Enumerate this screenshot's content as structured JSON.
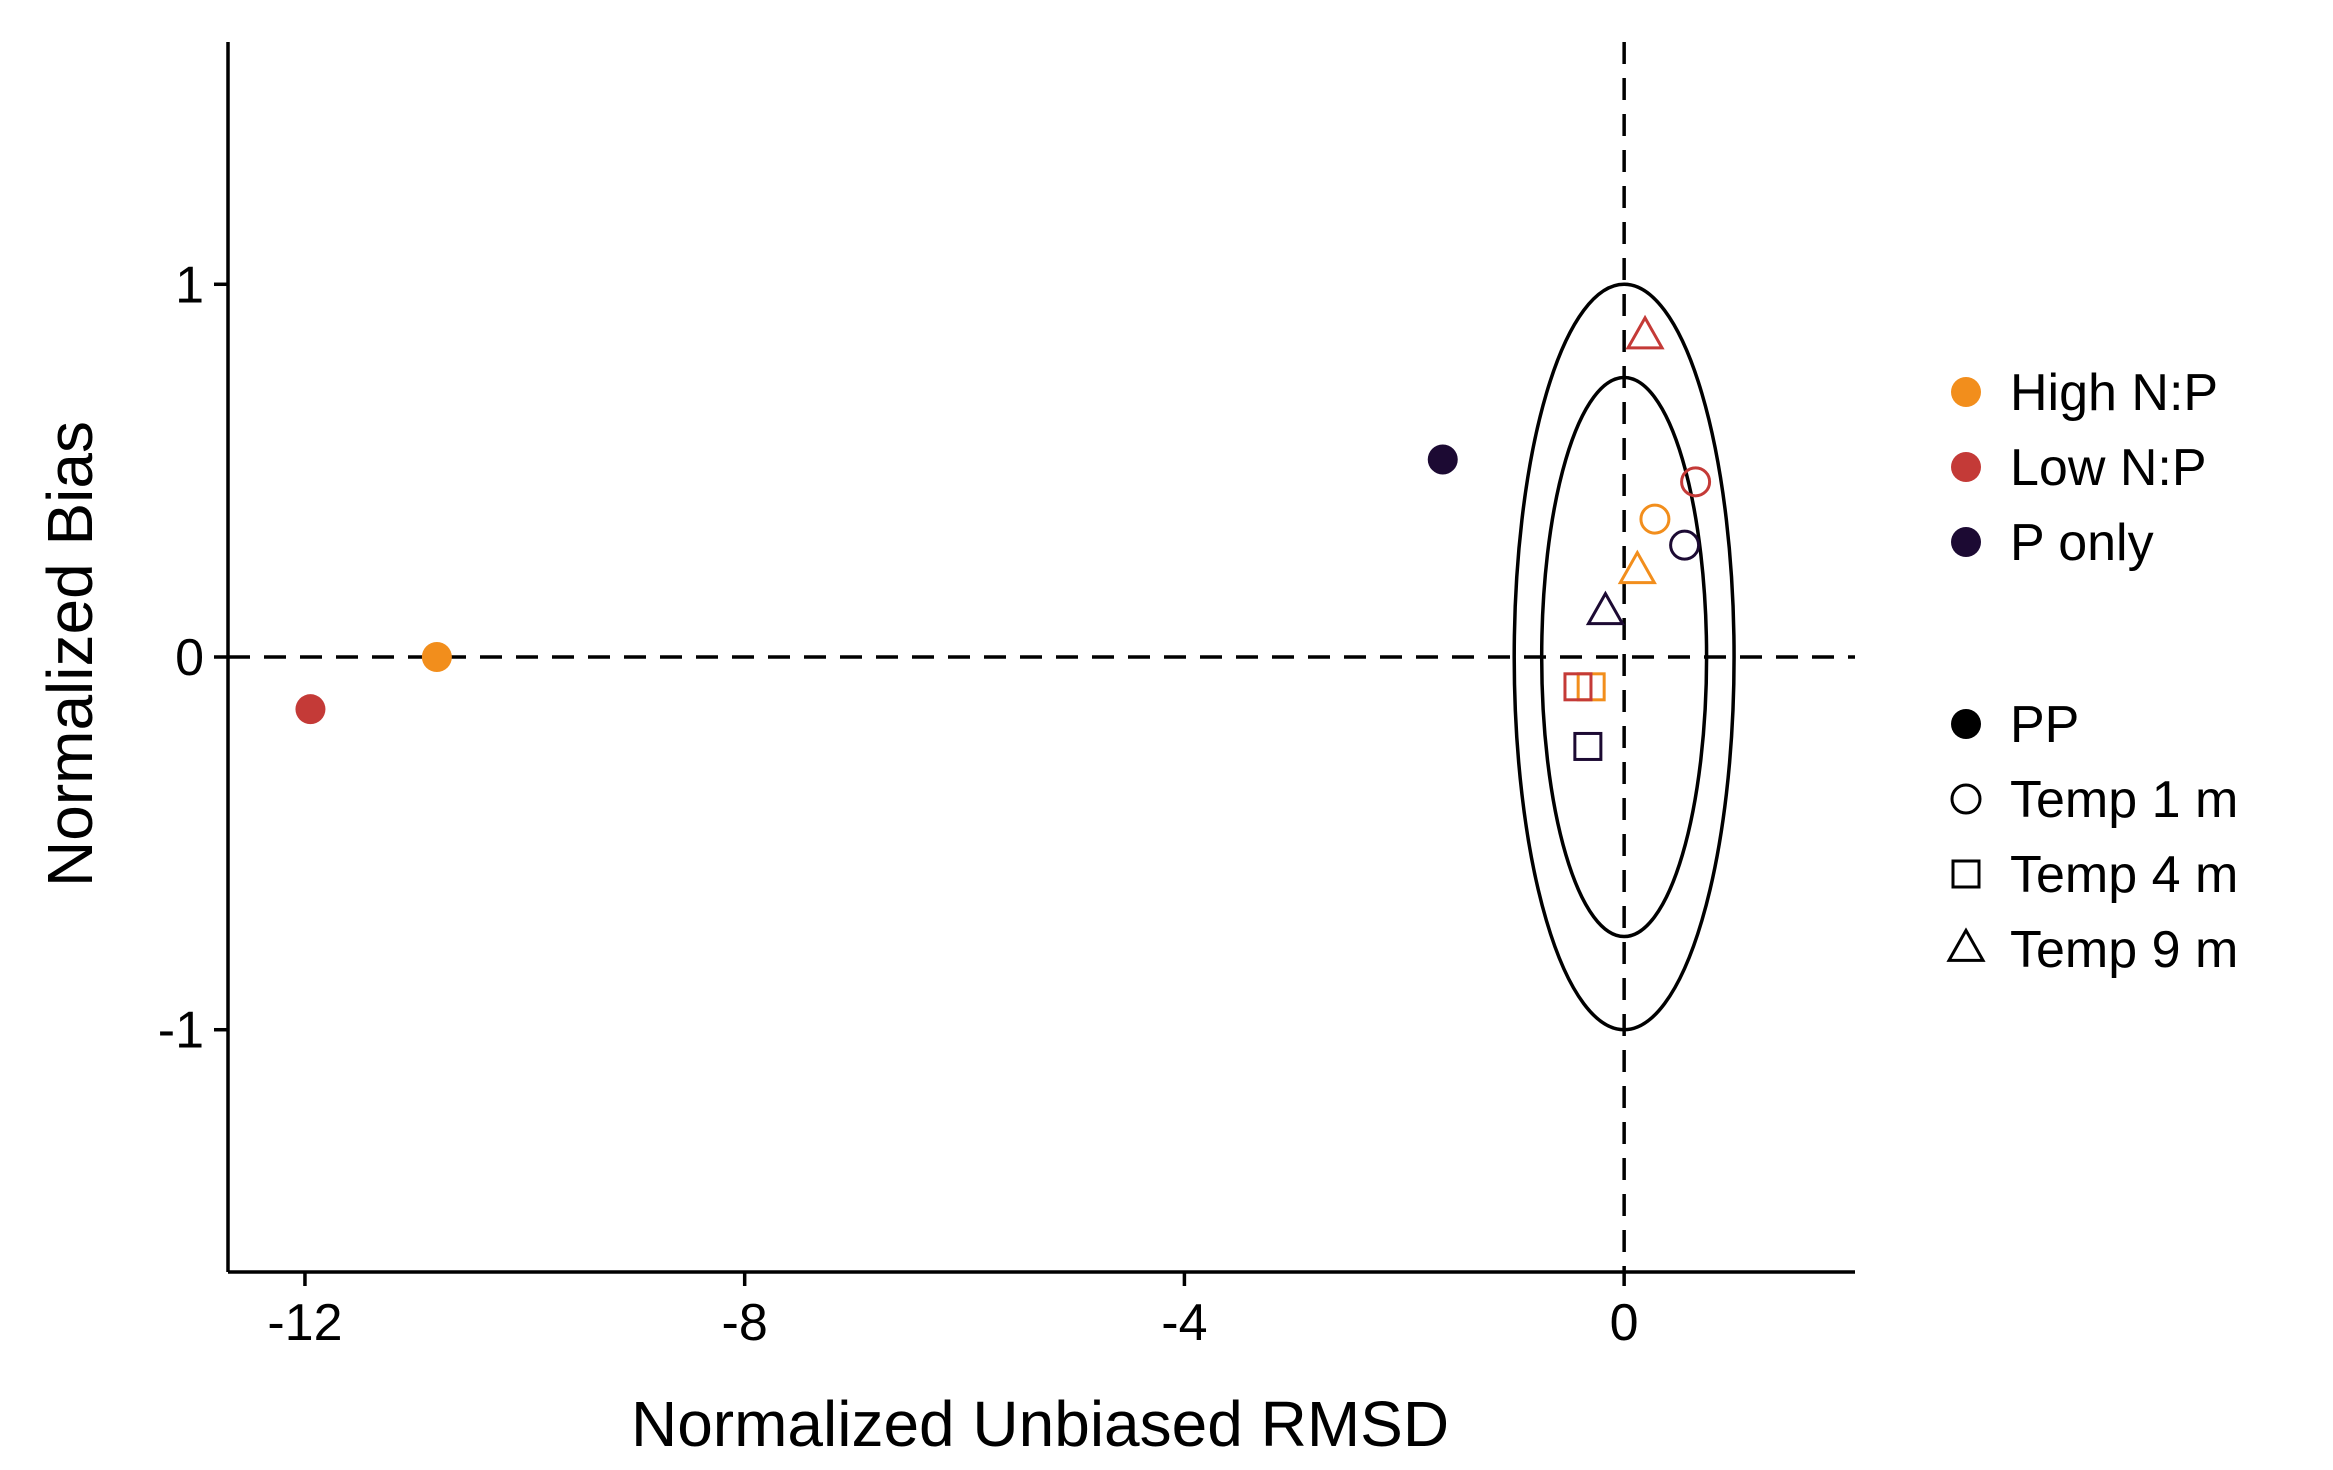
{
  "chart_data": {
    "type": "scatter",
    "title": "",
    "xlabel": "Normalized Unbiased RMSD",
    "ylabel": "Normalized Bias",
    "xlim": [
      -12.7,
      2.1
    ],
    "ylim": [
      -1.65,
      1.65
    ],
    "xticks": [
      -12,
      -8,
      -4,
      0
    ],
    "xtick_labels": [
      "-12",
      "-8",
      "-4",
      "0"
    ],
    "yticks": [
      -1,
      0,
      1
    ],
    "ytick_labels": [
      "-1",
      "0",
      "1"
    ],
    "grid": false,
    "reference_lines": [
      {
        "orientation": "horizontal",
        "value": 0,
        "style": "dashed"
      },
      {
        "orientation": "vertical",
        "value": 0,
        "style": "dashed"
      }
    ],
    "reference_circles": [
      {
        "radius": 1,
        "style": "solid"
      },
      {
        "radius": 0.75,
        "style": "solid"
      }
    ],
    "color_legend": {
      "placement": "right",
      "entries": [
        {
          "label": "High N:P",
          "color": "#F28E1C"
        },
        {
          "label": "Low N:P",
          "color": "#C43A37"
        },
        {
          "label": "P only",
          "color": "#1C0A33"
        }
      ]
    },
    "shape_legend": {
      "placement": "right",
      "entries": [
        {
          "label": "PP",
          "shape": "filled-circle"
        },
        {
          "label": "Temp 1 m",
          "shape": "open-circle"
        },
        {
          "label": "Temp 4 m",
          "shape": "open-square"
        },
        {
          "label": "Temp 9 m",
          "shape": "open-triangle"
        }
      ]
    },
    "points": [
      {
        "group": "High N:P",
        "variable": "PP",
        "x": -10.8,
        "y": 0.0
      },
      {
        "group": "Low N:P",
        "variable": "PP",
        "x": -11.95,
        "y": -0.14
      },
      {
        "group": "P only",
        "variable": "PP",
        "x": -1.65,
        "y": 0.53
      },
      {
        "group": "High N:P",
        "variable": "Temp 1 m",
        "x": 0.28,
        "y": 0.37
      },
      {
        "group": "Low N:P",
        "variable": "Temp 1 m",
        "x": 0.65,
        "y": 0.47
      },
      {
        "group": "P only",
        "variable": "Temp 1 m",
        "x": 0.55,
        "y": 0.3
      },
      {
        "group": "High N:P",
        "variable": "Temp 4 m",
        "x": -0.3,
        "y": -0.08
      },
      {
        "group": "Low N:P",
        "variable": "Temp 4 m",
        "x": -0.42,
        "y": -0.08
      },
      {
        "group": "P only",
        "variable": "Temp 4 m",
        "x": -0.33,
        "y": -0.24
      },
      {
        "group": "High N:P",
        "variable": "Temp 9 m",
        "x": 0.12,
        "y": 0.23
      },
      {
        "group": "Low N:P",
        "variable": "Temp 9 m",
        "x": 0.19,
        "y": 0.86
      },
      {
        "group": "P only",
        "variable": "Temp 9 m",
        "x": -0.17,
        "y": 0.12
      }
    ]
  }
}
